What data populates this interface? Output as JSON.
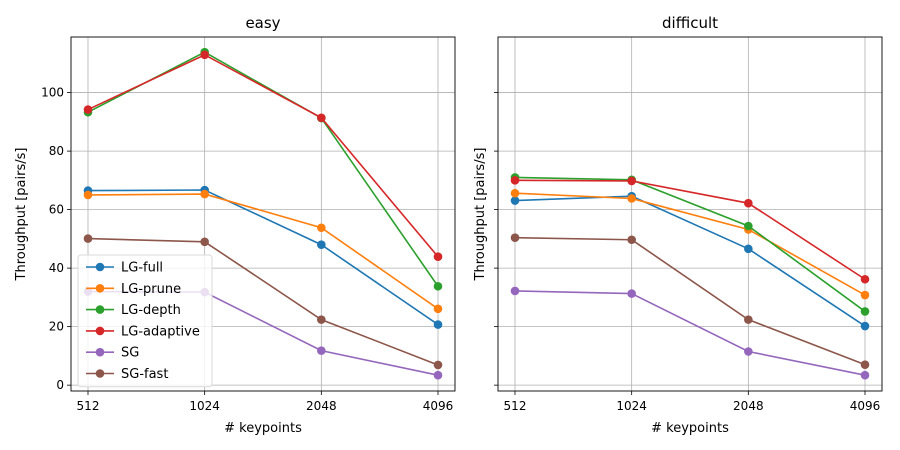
{
  "chart_data": [
    {
      "type": "line",
      "title": "easy",
      "xlabel": "# keypoints",
      "ylabel": "Throughput [pairs/s]",
      "categories": [
        "512",
        "1024",
        "2048",
        "4096"
      ],
      "ylim": [
        -2,
        119
      ],
      "yticks": [
        0,
        20,
        40,
        60,
        80,
        100
      ],
      "grid": true,
      "legend": "lower-left",
      "series": [
        {
          "name": "LG-full",
          "color": "#1f77b4",
          "values": [
            66.5,
            66.7,
            48.0,
            20.7
          ]
        },
        {
          "name": "LG-prune",
          "color": "#ff7f0e",
          "values": [
            65.0,
            65.3,
            53.8,
            26.1
          ]
        },
        {
          "name": "LG-depth",
          "color": "#2ca02c",
          "values": [
            93.3,
            113.8,
            91.3,
            33.8
          ]
        },
        {
          "name": "LG-adaptive",
          "color": "#d62728",
          "values": [
            94.2,
            112.9,
            91.4,
            43.9
          ]
        },
        {
          "name": "SG",
          "color": "#9467bd",
          "values": [
            32.0,
            31.8,
            11.8,
            3.4
          ]
        },
        {
          "name": "SG-fast",
          "color": "#8c564b",
          "values": [
            50.1,
            49.0,
            22.4,
            6.9
          ]
        }
      ]
    },
    {
      "type": "line",
      "title": "difficult",
      "xlabel": "# keypoints",
      "ylabel": "Throughput [pairs/s]",
      "categories": [
        "512",
        "1024",
        "2048",
        "4096"
      ],
      "ylim": [
        -2,
        119
      ],
      "yticks": [
        0,
        20,
        40,
        60,
        80,
        100
      ],
      "grid": true,
      "series": [
        {
          "name": "LG-full",
          "color": "#1f77b4",
          "values": [
            63.1,
            64.6,
            46.6,
            20.2
          ]
        },
        {
          "name": "LG-prune",
          "color": "#ff7f0e",
          "values": [
            65.6,
            63.8,
            53.2,
            30.8
          ]
        },
        {
          "name": "LG-depth",
          "color": "#2ca02c",
          "values": [
            71.0,
            70.2,
            54.4,
            25.2
          ]
        },
        {
          "name": "LG-adaptive",
          "color": "#d62728",
          "values": [
            70.0,
            69.8,
            62.2,
            36.2
          ]
        },
        {
          "name": "SG",
          "color": "#9467bd",
          "values": [
            32.2,
            31.3,
            11.5,
            3.4
          ]
        },
        {
          "name": "SG-fast",
          "color": "#8c564b",
          "values": [
            50.4,
            49.7,
            22.4,
            7.0
          ]
        }
      ]
    }
  ]
}
